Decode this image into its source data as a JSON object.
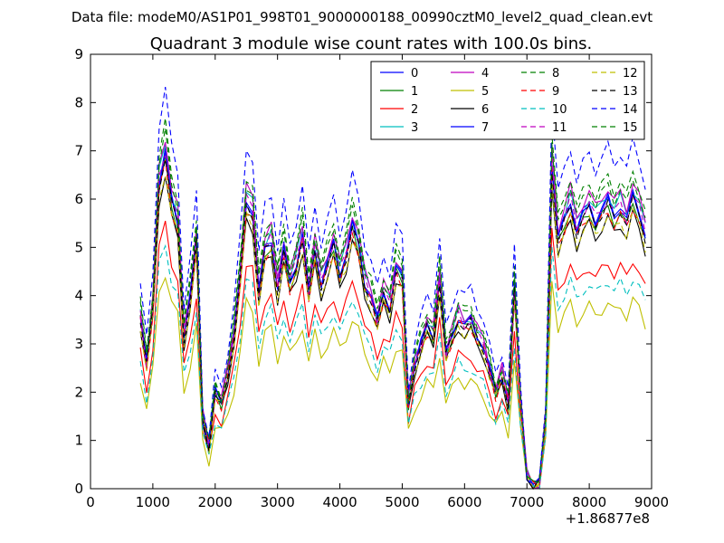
{
  "chart_data": {
    "type": "line",
    "suptitle": "Data file: modeM0/AS1P01_998T01_9000000188_00990cztM0_level2_quad_clean.evt",
    "title": "Quadrant 3 module wise count rates with 100.0s bins.",
    "xlabel": "",
    "ylabel": "",
    "x_offset_label": "+1.86877e8",
    "xlim": [
      0,
      9000
    ],
    "ylim": [
      0,
      9
    ],
    "xticks": [
      "0",
      "1000",
      "2000",
      "3000",
      "4000",
      "5000",
      "6000",
      "7000",
      "8000",
      "9000"
    ],
    "yticks": [
      "0",
      "1",
      "2",
      "3",
      "4",
      "5",
      "6",
      "7",
      "8",
      "9"
    ],
    "legend_position": "top-right",
    "x": [
      800,
      900,
      1000,
      1100,
      1200,
      1300,
      1400,
      1500,
      1600,
      1700,
      1800,
      1900,
      2000,
      2100,
      2200,
      2300,
      2400,
      2500,
      2600,
      2700,
      2800,
      2900,
      3000,
      3100,
      3200,
      3300,
      3400,
      3500,
      3600,
      3700,
      3800,
      3900,
      4000,
      4100,
      4200,
      4300,
      4400,
      4500,
      4600,
      4700,
      4800,
      4900,
      5000,
      5100,
      5200,
      5300,
      5400,
      5500,
      5600,
      5700,
      5800,
      5900,
      6000,
      6100,
      6200,
      6300,
      6400,
      6500,
      6600,
      6700,
      6800,
      6900,
      7000,
      7100,
      7200,
      7300,
      7400,
      7500,
      7600,
      7700,
      7800,
      7900,
      8000,
      8100,
      8200,
      8300,
      8400,
      8500,
      8600,
      8700,
      8800,
      8900
    ],
    "base_profile": [
      3.6,
      2.6,
      3.8,
      6.4,
      7.0,
      6.0,
      5.6,
      3.2,
      4.0,
      5.2,
      1.5,
      0.9,
      2.0,
      1.8,
      2.4,
      3.2,
      4.4,
      6.0,
      5.8,
      4.1,
      5.0,
      5.2,
      4.2,
      5.0,
      4.3,
      4.7,
      5.3,
      4.1,
      5.0,
      4.3,
      4.7,
      5.1,
      4.5,
      4.9,
      5.5,
      5.1,
      4.3,
      4.0,
      3.5,
      4.1,
      3.8,
      4.6,
      4.4,
      1.8,
      2.6,
      3.0,
      3.4,
      3.2,
      4.4,
      2.8,
      3.2,
      3.6,
      3.4,
      3.5,
      3.2,
      3.0,
      2.5,
      2.0,
      2.4,
      1.8,
      4.2,
      1.8,
      0.3,
      0.05,
      0.1,
      1.5,
      6.8,
      5.2,
      5.6,
      6.0,
      5.4,
      5.7,
      5.9,
      5.6,
      5.8,
      6.0,
      5.7,
      5.9,
      5.6,
      6.1,
      5.8,
      5.3
    ],
    "series": [
      {
        "name": "0",
        "color": "#0000ff",
        "style": "solid",
        "scale": 1.0
      },
      {
        "name": "1",
        "color": "#008000",
        "style": "solid",
        "scale": 0.97
      },
      {
        "name": "2",
        "color": "#ff0000",
        "style": "solid",
        "scale": 0.78
      },
      {
        "name": "3",
        "color": "#00bfbf",
        "style": "solid",
        "scale": 1.02
      },
      {
        "name": "4",
        "color": "#bf00bf",
        "style": "solid",
        "scale": 1.04
      },
      {
        "name": "5",
        "color": "#bfbf00",
        "style": "solid",
        "scale": 0.64
      },
      {
        "name": "6",
        "color": "#000000",
        "style": "solid",
        "scale": 0.93
      },
      {
        "name": "7",
        "color": "#0000ff",
        "style": "solid",
        "scale": 0.99
      },
      {
        "name": "8",
        "color": "#008000",
        "style": "dashed",
        "scale": 1.08
      },
      {
        "name": "9",
        "color": "#ff0000",
        "style": "dashed",
        "scale": 0.96
      },
      {
        "name": "10",
        "color": "#00bfbf",
        "style": "dashed",
        "scale": 0.72
      },
      {
        "name": "11",
        "color": "#bf00bf",
        "style": "dashed",
        "scale": 1.0
      },
      {
        "name": "12",
        "color": "#bfbf00",
        "style": "dashed",
        "scale": 0.94
      },
      {
        "name": "13",
        "color": "#000000",
        "style": "dashed",
        "scale": 0.98
      },
      {
        "name": "14",
        "color": "#0000ff",
        "style": "dashed",
        "scale": 1.18
      },
      {
        "name": "15",
        "color": "#008000",
        "style": "dashed",
        "scale": 1.05
      }
    ]
  }
}
